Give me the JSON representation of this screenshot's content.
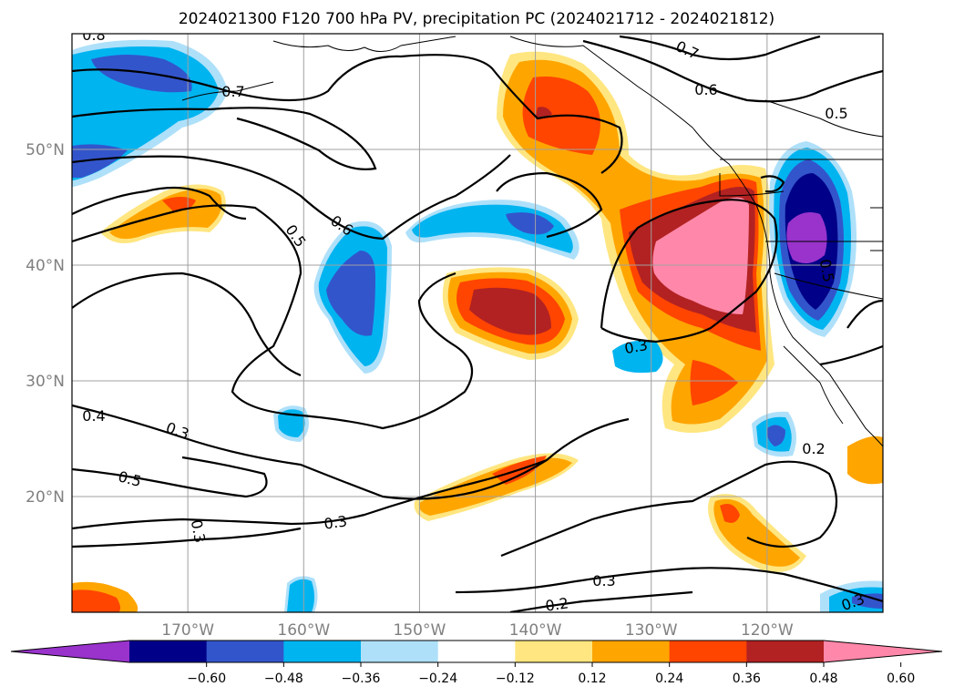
{
  "title": "2024021300 F120 700 hPa PV, precipitation PC (2024021712 - 2024021812)",
  "map": {
    "lon_ticks": [
      -170,
      -160,
      -150,
      -140,
      -130,
      -120
    ],
    "lat_ticks": [
      20,
      30,
      40,
      50
    ],
    "lon_labels": [
      "170°W",
      "160°W",
      "150°W",
      "140°W",
      "130°W",
      "120°W"
    ],
    "lat_labels": [
      "20°N",
      "30°N",
      "40°N",
      "50°N"
    ],
    "lon_range": [
      -180,
      -110
    ],
    "lat_range": [
      10,
      60
    ],
    "gridlines": true
  },
  "colorbar": {
    "orientation": "horizontal",
    "extend": "both",
    "tick_labels": [
      "-0.60",
      "-0.48",
      "-0.36",
      "-0.24",
      "-0.12",
      "0.12",
      "0.24",
      "0.36",
      "0.48",
      "0.60"
    ],
    "colors": [
      "#9933cc",
      "#000088",
      "#3355cc",
      "#00b4f0",
      "#aee0fa",
      "#ffffff",
      "#ffe680",
      "#ffa500",
      "#ff4500",
      "#b22222",
      "#ff88aa"
    ]
  },
  "contour_labels": [
    {
      "text": "0.8"
    },
    {
      "text": "0.7"
    },
    {
      "text": "0.7"
    },
    {
      "text": "0.6"
    },
    {
      "text": "0.5"
    },
    {
      "text": "0.6"
    },
    {
      "text": "0.5"
    },
    {
      "text": "0.3"
    },
    {
      "text": "0.4"
    },
    {
      "text": "0.3"
    },
    {
      "text": "0.5"
    },
    {
      "text": "0.3"
    },
    {
      "text": "0.3"
    },
    {
      "text": "0.3"
    },
    {
      "text": "0.2"
    },
    {
      "text": "0.2"
    },
    {
      "text": "0.3"
    },
    {
      "text": "0.5"
    }
  ]
}
